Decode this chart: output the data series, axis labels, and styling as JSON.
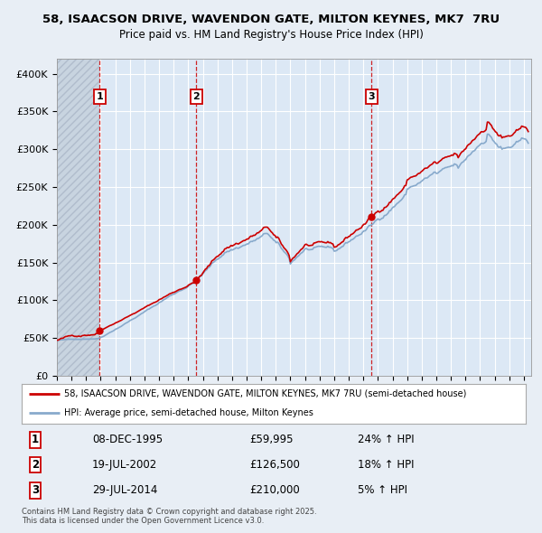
{
  "title1": "58, ISAACSON DRIVE, WAVENDON GATE, MILTON KEYNES, MK7  7RU",
  "title2": "Price paid vs. HM Land Registry's House Price Index (HPI)",
  "ylim": [
    0,
    420000
  ],
  "yticks": [
    0,
    50000,
    100000,
    150000,
    200000,
    250000,
    300000,
    350000,
    400000
  ],
  "ytick_labels": [
    "£0",
    "£50K",
    "£100K",
    "£150K",
    "£200K",
    "£250K",
    "£300K",
    "£350K",
    "£400K"
  ],
  "xlim_start": 1993.0,
  "xlim_end": 2025.5,
  "sale_dates": [
    1995.94,
    2002.55,
    2014.57
  ],
  "sale_prices": [
    59995,
    126500,
    210000
  ],
  "sale_labels": [
    "1",
    "2",
    "3"
  ],
  "sale_date_strs": [
    "08-DEC-1995",
    "19-JUL-2002",
    "29-JUL-2014"
  ],
  "sale_price_strs": [
    "£59,995",
    "£126,500",
    "£210,000"
  ],
  "sale_hpi_strs": [
    "24% ↑ HPI",
    "18% ↑ HPI",
    "5% ↑ HPI"
  ],
  "hatch_start": 1993.0,
  "hatch_end": 1995.94,
  "line_color_price": "#cc0000",
  "line_color_hpi": "#88aacc",
  "legend_label_price": "58, ISAACSON DRIVE, WAVENDON GATE, MILTON KEYNES, MK7 7RU (semi-detached house)",
  "legend_label_hpi": "HPI: Average price, semi-detached house, Milton Keynes",
  "footer_text": "Contains HM Land Registry data © Crown copyright and database right 2025.\nThis data is licensed under the Open Government Licence v3.0.",
  "background_color": "#e8eef5",
  "plot_bg_color": "#dce8f5",
  "grid_color": "#ffffff",
  "hatch_color": "#c8d4e0"
}
